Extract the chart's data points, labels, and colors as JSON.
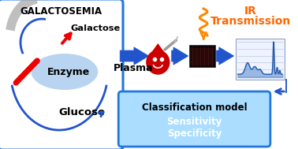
{
  "bg_color": "#ffffff",
  "left_box_edge": "#2277dd",
  "left_box_face": "#ffffff",
  "galactosemia_text": "GALACTOSEMIA",
  "galactose_text": "Galactose",
  "enzyme_text": "Enzyme",
  "glucose_text": "Glucose",
  "plasma_text": "Plasma",
  "ir_line1": "IR",
  "ir_line2": "Transmission",
  "ir_color": "#ff6600",
  "classif_text": "Classification model",
  "sensitivity_text": "Sensitivity",
  "specificity_text": "Specificity",
  "classif_bg": "#aaddff",
  "classif_edge": "#2277dd",
  "arrow_color": "#2255cc",
  "red_arrow_color": "#ee0000",
  "xmark_color": "#ee0000",
  "enzyme_ellipse_color": "#b8d4f0",
  "spectrum_line_color": "#2255aa",
  "spectrum_fill_color": "#5588cc",
  "wavy_color": "#ff8800",
  "dark_rect_color": "#1a0505",
  "gray_swoosh": "#aaaaaa",
  "figw": 3.78,
  "figh": 1.89,
  "dpi": 100
}
